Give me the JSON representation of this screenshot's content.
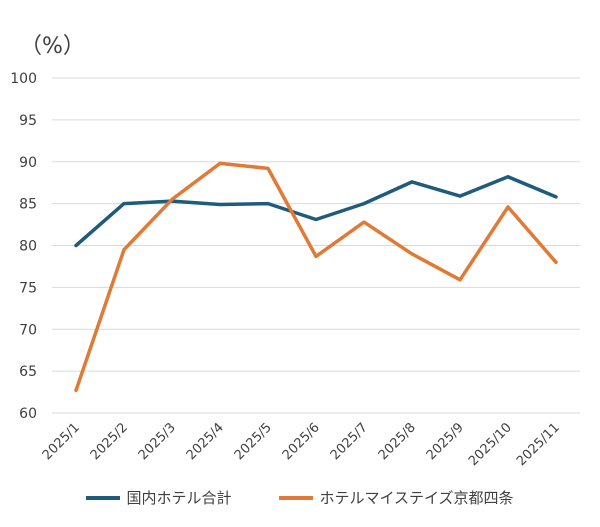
{
  "chart_data": {
    "type": "line",
    "title": "",
    "unit_label": "（%）",
    "categories": [
      "2025/1",
      "2025/2",
      "2025/3",
      "2025/4",
      "2025/5",
      "2025/6",
      "2025/7",
      "2025/8",
      "2025/9",
      "2025/10",
      "2025/11"
    ],
    "ylim": [
      60,
      100
    ],
    "yticks": [
      60,
      65,
      70,
      75,
      80,
      85,
      90,
      95,
      100
    ],
    "grid": true,
    "legend_position": "bottom",
    "series": [
      {
        "name": "国内ホテル合計",
        "color": "#1f5b7a",
        "values": [
          80.0,
          85.0,
          85.3,
          84.9,
          85.0,
          83.1,
          85.0,
          87.6,
          85.9,
          88.2,
          85.8
        ]
      },
      {
        "name": "ホテルマイステイズ京都四条",
        "color": "#e07a36",
        "values": [
          62.7,
          79.5,
          85.5,
          89.8,
          89.2,
          78.7,
          82.8,
          79.0,
          75.9,
          84.6,
          78.0
        ]
      }
    ]
  }
}
